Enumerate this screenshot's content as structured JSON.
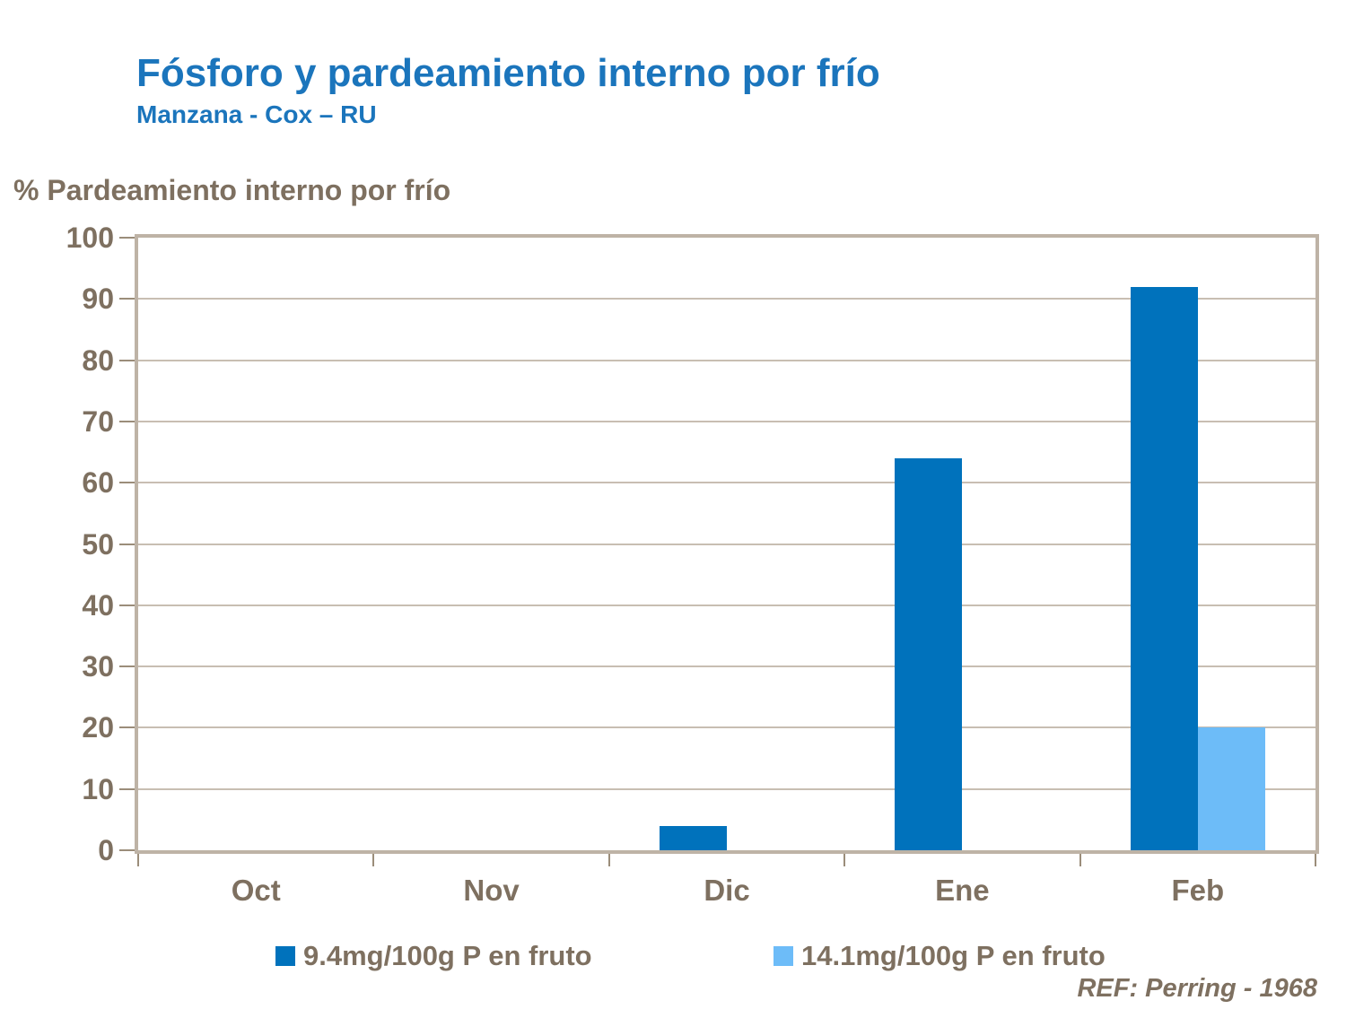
{
  "title": "Fósforo y pardeamiento interno por frío",
  "subtitle": "Manzana - Cox – RU",
  "axis_title": "% Pardeamiento interno por frío",
  "ref_note": "REF: Perring - 1968",
  "colors": {
    "title_blue": "#1b75bc",
    "series1_blue": "#0072bc",
    "series2_light_blue": "#6dbcf8",
    "text_taupe": "#7e7060",
    "gridline": "#c8beb2",
    "plot_border": "#beb3a6",
    "tick": "#9b8d7a"
  },
  "chart_data": {
    "type": "bar",
    "categories": [
      "Oct",
      "Nov",
      "Dic",
      "Ene",
      "Feb"
    ],
    "series": [
      {
        "name": "9.4mg/100g P en fruto",
        "color": "#0072bc",
        "values": [
          0,
          0,
          4,
          64,
          92
        ]
      },
      {
        "name": "14.1mg/100g P en fruto",
        "color": "#6dbcf8",
        "values": [
          0,
          0,
          0,
          0,
          20
        ]
      }
    ],
    "title": "Fósforo y pardeamiento interno por frío",
    "xlabel": "",
    "ylabel": "% Pardeamiento interno por frío",
    "ylim": [
      0,
      100
    ],
    "ytick_step": 10,
    "grid": true,
    "legend_position": "bottom"
  }
}
